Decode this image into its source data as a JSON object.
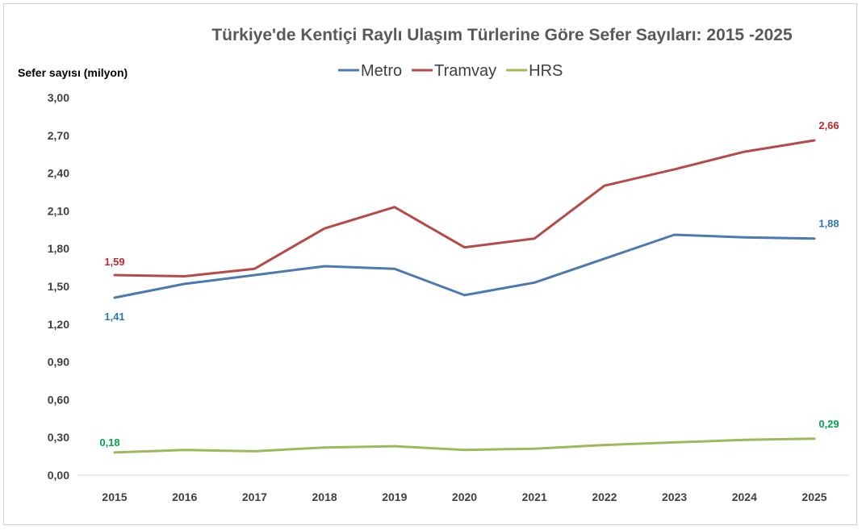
{
  "chart_data": {
    "type": "line",
    "title": "Türkiye'de Kentiçi Raylı Ulaşım Türlerine Göre Sefer Sayıları: 2015 -2025",
    "xlabel": "",
    "ylabel": "Sefer sayısı (milyon)",
    "ylim": [
      0,
      3
    ],
    "yticks": [
      "0,00",
      "0,30",
      "0,60",
      "0,90",
      "1,20",
      "1,50",
      "1,80",
      "2,10",
      "2,40",
      "2,70",
      "3,00"
    ],
    "categories": [
      "2015",
      "2016",
      "2017",
      "2018",
      "2019",
      "2020",
      "2021",
      "2022",
      "2023",
      "2024",
      "2025"
    ],
    "grid": false,
    "legend_position": "top",
    "series": [
      {
        "name": "Metro",
        "color": "#4a7ab0",
        "values": [
          1.41,
          1.52,
          1.59,
          1.66,
          1.64,
          1.43,
          1.53,
          1.72,
          1.91,
          1.89,
          1.88
        ],
        "labels": [
          {
            "index": 0,
            "text": "1,41",
            "color": "#2e75b6"
          },
          {
            "index": 10,
            "text": "1,88",
            "color": "#2e75b6"
          }
        ]
      },
      {
        "name": "Tramvay",
        "color": "#b54a48",
        "values": [
          1.59,
          1.58,
          1.64,
          1.96,
          2.13,
          1.81,
          1.88,
          2.3,
          2.43,
          2.57,
          2.66
        ],
        "labels": [
          {
            "index": 0,
            "text": "1,59",
            "color": "#c0282c"
          },
          {
            "index": 10,
            "text": "2,66",
            "color": "#c0282c"
          }
        ]
      },
      {
        "name": "HRS",
        "color": "#9bbb59",
        "values": [
          0.18,
          0.2,
          0.19,
          0.22,
          0.23,
          0.2,
          0.21,
          0.24,
          0.26,
          0.28,
          0.29
        ],
        "labels": [
          {
            "index": 0,
            "text": "0,18",
            "color": "#00a651"
          },
          {
            "index": 10,
            "text": "0,29",
            "color": "#00a651"
          }
        ]
      }
    ]
  }
}
